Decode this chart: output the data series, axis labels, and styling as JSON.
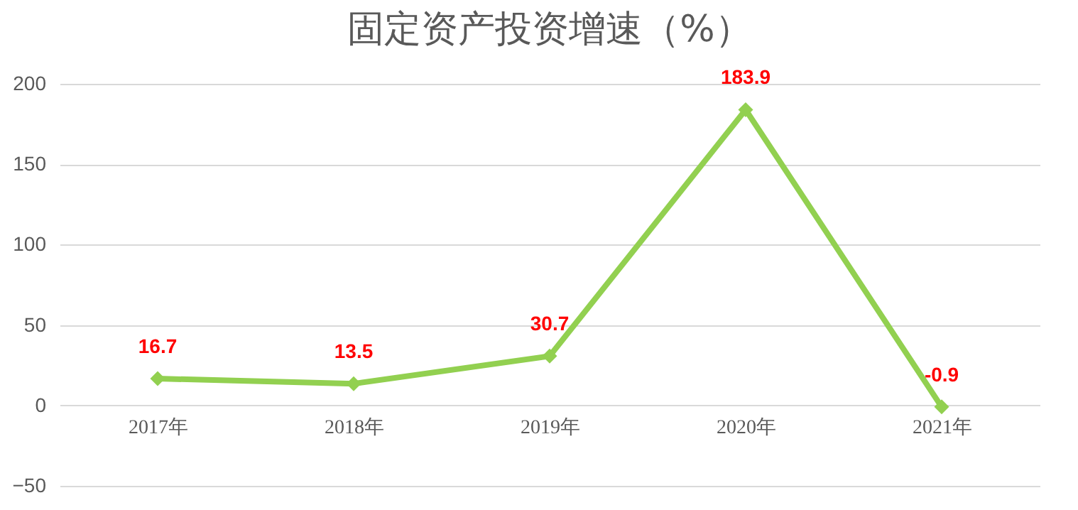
{
  "chart_data": {
    "type": "line",
    "title": "固定资产投资增速（%）",
    "categories": [
      "2017年",
      "2018年",
      "2019年",
      "2020年",
      "2021年"
    ],
    "series": [
      {
        "color": "#92d050",
        "values": [
          16.7,
          13.5,
          30.7,
          183.9,
          -0.9
        ]
      }
    ],
    "ylim": [
      -50,
      200
    ],
    "yticks": [
      -50,
      0,
      50,
      100,
      150,
      200
    ],
    "grid": "y",
    "marker": "diamond",
    "line_style": "solid",
    "data_labels": true,
    "legend": false
  }
}
